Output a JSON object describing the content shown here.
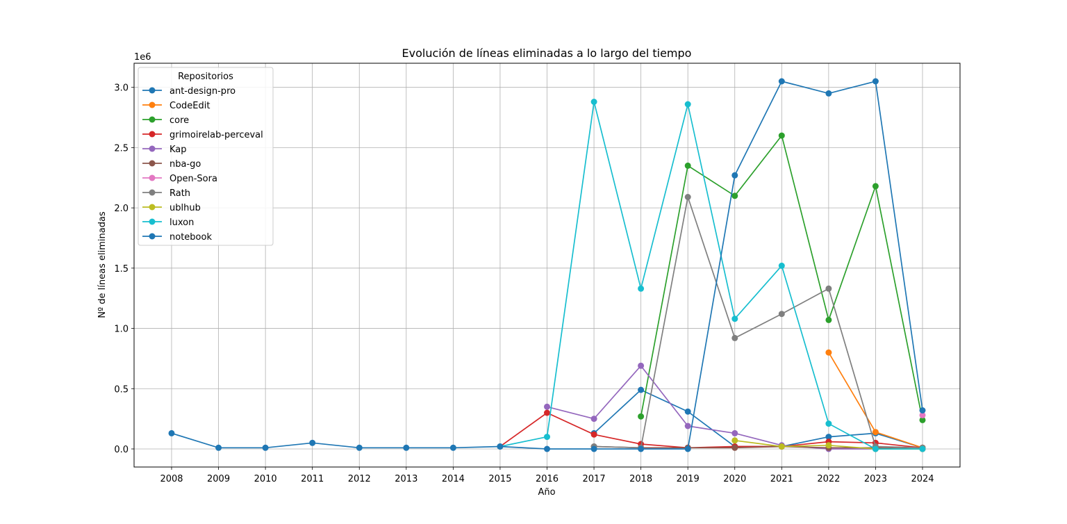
{
  "chart_data": {
    "type": "line",
    "title": "Evolución de líneas eliminadas a lo largo del tiempo",
    "xlabel": "Año",
    "ylabel": "Nº de líneas eliminadas",
    "y_scale_label": "1e6",
    "legend_title": "Repositorios",
    "legend_position": "upper-left",
    "grid": true,
    "categories": [
      "2008",
      "2009",
      "2010",
      "2011",
      "2012",
      "2013",
      "2014",
      "2015",
      "2016",
      "2017",
      "2018",
      "2019",
      "2020",
      "2021",
      "2022",
      "2023",
      "2024"
    ],
    "ylim": [
      -0.15,
      3.2
    ],
    "yticks": [
      0.0,
      0.5,
      1.0,
      1.5,
      2.0,
      2.5,
      3.0
    ],
    "ytick_labels": [
      "0.0",
      "0.5",
      "1.0",
      "1.5",
      "2.0",
      "2.5",
      "3.0"
    ],
    "series": [
      {
        "name": "ant-design-pro",
        "color": "#1f77b4",
        "x": [
          "2017",
          "2018",
          "2019",
          "2020",
          "2021",
          "2022",
          "2023",
          "2024"
        ],
        "values": [
          0.13,
          0.49,
          0.31,
          0.02,
          0.02,
          0.1,
          0.13,
          0.01
        ]
      },
      {
        "name": "CodeEdit",
        "color": "#ff7f0e",
        "x": [
          "2022",
          "2023",
          "2024"
        ],
        "values": [
          0.8,
          0.14,
          0.01
        ]
      },
      {
        "name": "core",
        "color": "#2ca02c",
        "x": [
          "2018",
          "2019",
          "2020",
          "2021",
          "2022",
          "2023",
          "2024"
        ],
        "values": [
          0.27,
          2.35,
          2.1,
          2.6,
          1.07,
          2.18,
          0.24
        ]
      },
      {
        "name": "grimoirelab-perceval",
        "color": "#d62728",
        "x": [
          "2015",
          "2016",
          "2017",
          "2018",
          "2019",
          "2020",
          "2021",
          "2022",
          "2023",
          "2024"
        ],
        "values": [
          0.02,
          0.3,
          0.12,
          0.04,
          0.01,
          0.02,
          0.02,
          0.06,
          0.05,
          0.01
        ]
      },
      {
        "name": "Kap",
        "color": "#9467bd",
        "x": [
          "2016",
          "2017",
          "2018",
          "2019",
          "2020",
          "2021",
          "2022",
          "2023",
          "2024"
        ],
        "values": [
          0.35,
          0.25,
          0.69,
          0.19,
          0.13,
          0.03,
          0.0,
          0.0,
          0.0
        ]
      },
      {
        "name": "nba-go",
        "color": "#8c564b",
        "x": [
          "2017",
          "2018",
          "2019",
          "2020",
          "2021",
          "2022",
          "2023",
          "2024"
        ],
        "values": [
          0.02,
          0.01,
          0.01,
          0.01,
          0.02,
          0.01,
          0.01,
          0.0
        ]
      },
      {
        "name": "Open-Sora",
        "color": "#e377c2",
        "x": [
          "2024"
        ],
        "values": [
          0.28
        ]
      },
      {
        "name": "Rath",
        "color": "#7f7f7f",
        "x": [
          "2017",
          "2018",
          "2019",
          "2020",
          "2021",
          "2022",
          "2023",
          "2024"
        ],
        "values": [
          0.02,
          0.01,
          2.09,
          0.92,
          1.12,
          1.33,
          0.02,
          0.01
        ]
      },
      {
        "name": "ublhub",
        "color": "#bcbd22",
        "x": [
          "2020",
          "2021",
          "2022",
          "2023",
          "2024"
        ],
        "values": [
          0.07,
          0.02,
          0.03,
          0.0,
          0.0
        ]
      },
      {
        "name": "luxon",
        "color": "#17becf",
        "x": [
          "2015",
          "2016",
          "2017",
          "2018",
          "2019",
          "2020",
          "2021",
          "2022",
          "2023",
          "2024"
        ],
        "values": [
          0.02,
          0.1,
          2.88,
          1.33,
          2.86,
          1.08,
          1.52,
          0.21,
          0.0,
          0.0
        ]
      },
      {
        "name": "notebook",
        "color": "#1f77b4",
        "x": [
          "2008",
          "2009",
          "2010",
          "2011",
          "2012",
          "2013",
          "2014",
          "2015",
          "2016",
          "2017",
          "2018",
          "2019",
          "2020",
          "2021",
          "2022",
          "2023",
          "2024"
        ],
        "values": [
          0.13,
          0.01,
          0.01,
          0.05,
          0.01,
          0.01,
          0.01,
          0.02,
          0.0,
          0.0,
          0.0,
          0.0,
          2.27,
          3.05,
          2.95,
          3.05,
          0.32
        ]
      }
    ]
  }
}
